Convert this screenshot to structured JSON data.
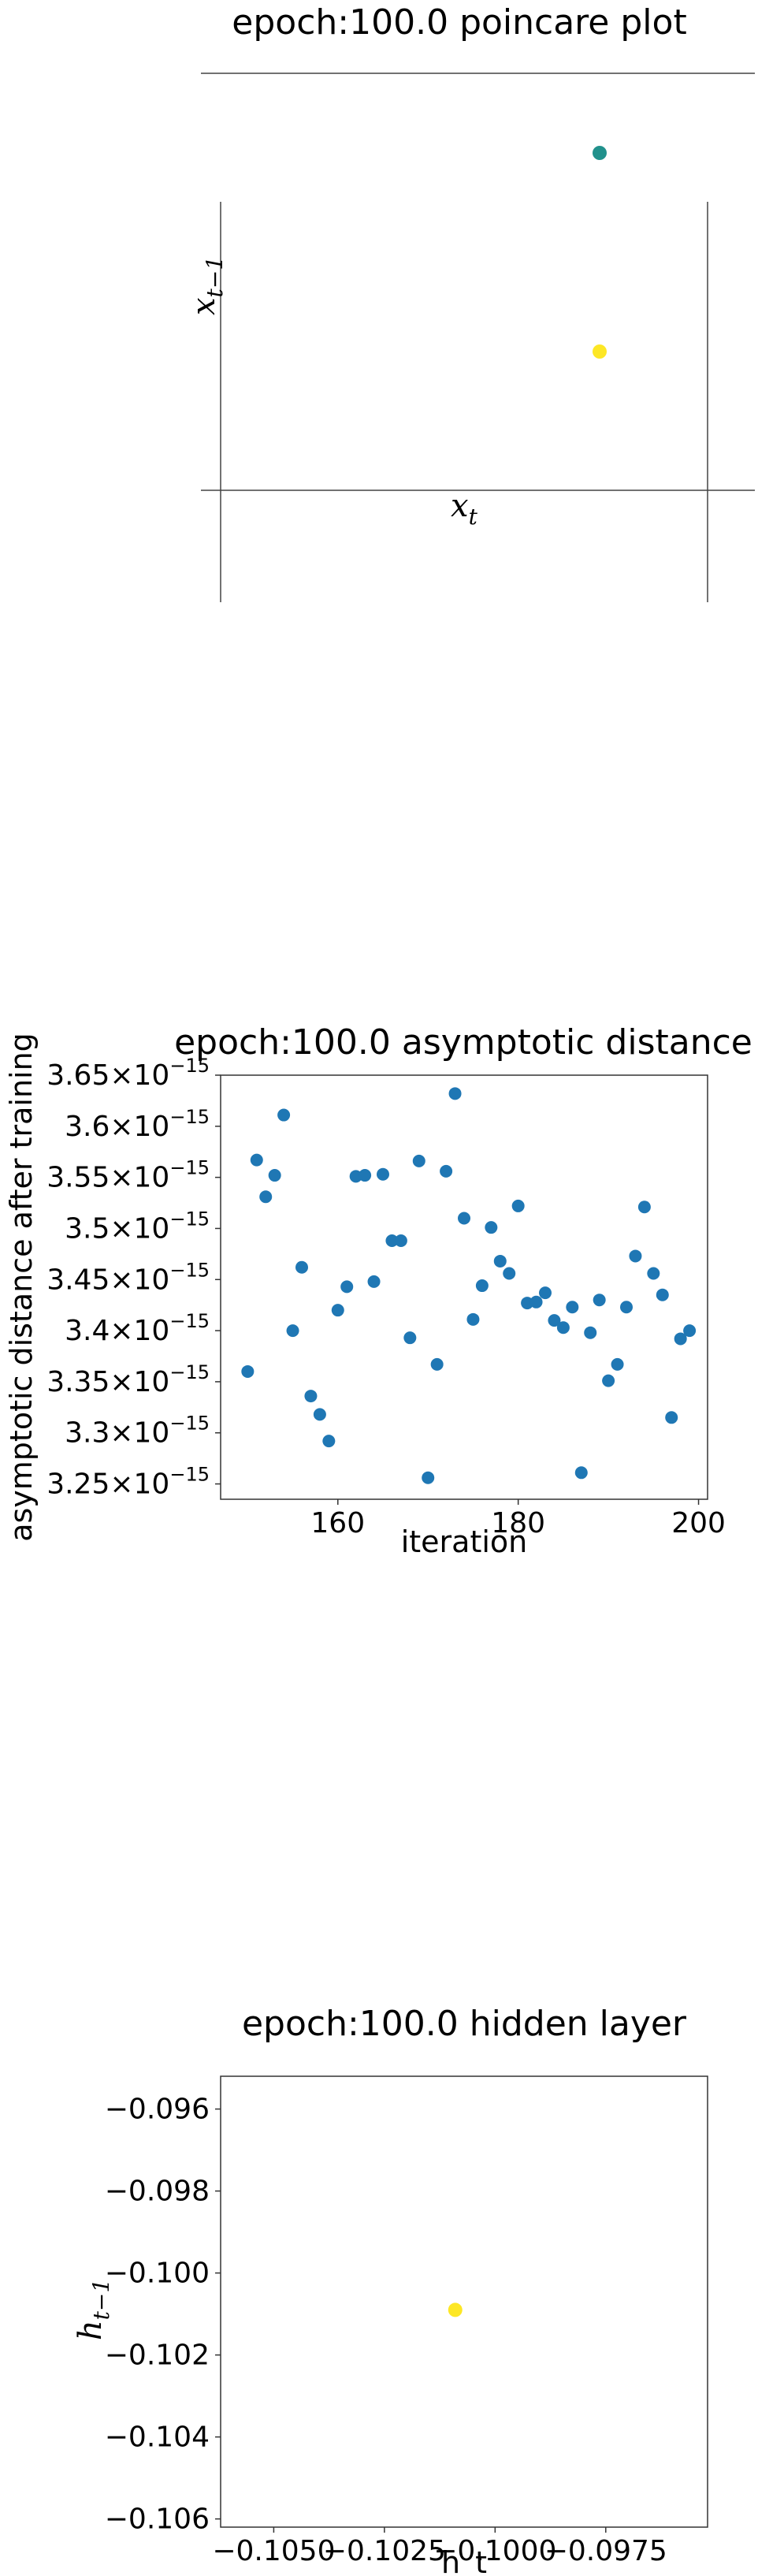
{
  "chart_data": [
    {
      "type": "scatter",
      "title": "epoch:100.0 poincare plot",
      "xlabel": "x",
      "xlabel_sub": "t",
      "ylabel": "x",
      "ylabel_sub": "t−1",
      "axes": "centered spines, no tick labels",
      "points": [
        {
          "color": "#21918c"
        },
        {
          "color": "#fde725"
        }
      ]
    },
    {
      "type": "scatter",
      "title": "epoch:100.0 asymptotic distance",
      "xlabel": "iteration",
      "ylabel": "asymptotic distance after training",
      "xlim": [
        147,
        201
      ],
      "ylim": [
        3.235,
        3.65
      ],
      "y_scale_exponent": -15,
      "xticks": [
        160,
        180,
        200
      ],
      "yticks": [
        {
          "v": 3.25,
          "m": "3.25"
        },
        {
          "v": 3.3,
          "m": "3.3"
        },
        {
          "v": 3.35,
          "m": "3.35"
        },
        {
          "v": 3.4,
          "m": "3.4"
        },
        {
          "v": 3.45,
          "m": "3.45"
        },
        {
          "v": 3.5,
          "m": "3.5"
        },
        {
          "v": 3.55,
          "m": "3.55"
        },
        {
          "v": 3.6,
          "m": "3.6"
        },
        {
          "v": 3.65,
          "m": "3.65"
        }
      ],
      "tick_times": "×10",
      "tick_exp": "−15",
      "color": "#1f77b4",
      "x": [
        150,
        151,
        152,
        153,
        154,
        155,
        156,
        157,
        158,
        159,
        160,
        161,
        162,
        163,
        164,
        165,
        166,
        167,
        168,
        169,
        170,
        171,
        172,
        173,
        174,
        175,
        176,
        177,
        178,
        179,
        180,
        181,
        182,
        183,
        184,
        185,
        186,
        187,
        188,
        189,
        190,
        191,
        192,
        193,
        194,
        195,
        196,
        197,
        198,
        199
      ],
      "y": [
        3.36,
        3.567,
        3.531,
        3.552,
        3.611,
        3.4,
        3.462,
        3.336,
        3.318,
        3.292,
        3.42,
        3.443,
        3.551,
        3.552,
        3.448,
        3.553,
        3.488,
        3.488,
        3.393,
        3.566,
        3.256,
        3.367,
        3.556,
        3.632,
        3.51,
        3.411,
        3.444,
        3.501,
        3.468,
        3.456,
        3.522,
        3.427,
        3.428,
        3.437,
        3.41,
        3.403,
        3.423,
        3.261,
        3.398,
        3.43,
        3.351,
        3.367,
        3.423,
        3.473,
        3.521,
        3.456,
        3.435,
        3.315,
        3.392,
        3.4
      ]
    },
    {
      "type": "scatter",
      "title": "epoch:100.0 hidden layer",
      "xlabel": "h_t",
      "ylabel": "h",
      "ylabel_sub": "t−1",
      "xlim": [
        -0.1062,
        -0.0952
      ],
      "ylim": [
        -0.1062,
        -0.0952
      ],
      "xticks": [
        {
          "v": -0.105,
          "t": "−0.1050"
        },
        {
          "v": -0.1025,
          "t": "−0.1025"
        },
        {
          "v": -0.1,
          "t": "−0.1000"
        },
        {
          "v": -0.0975,
          "t": "−0.0975"
        }
      ],
      "yticks": [
        {
          "v": -0.096,
          "t": "−0.096"
        },
        {
          "v": -0.098,
          "t": "−0.098"
        },
        {
          "v": -0.1,
          "t": "−0.100"
        },
        {
          "v": -0.102,
          "t": "−0.102"
        },
        {
          "v": -0.104,
          "t": "−0.104"
        },
        {
          "v": -0.106,
          "t": "−0.106"
        }
      ],
      "points": [
        {
          "x": -0.1009,
          "y": -0.1009,
          "color": "#fde725"
        }
      ]
    }
  ]
}
